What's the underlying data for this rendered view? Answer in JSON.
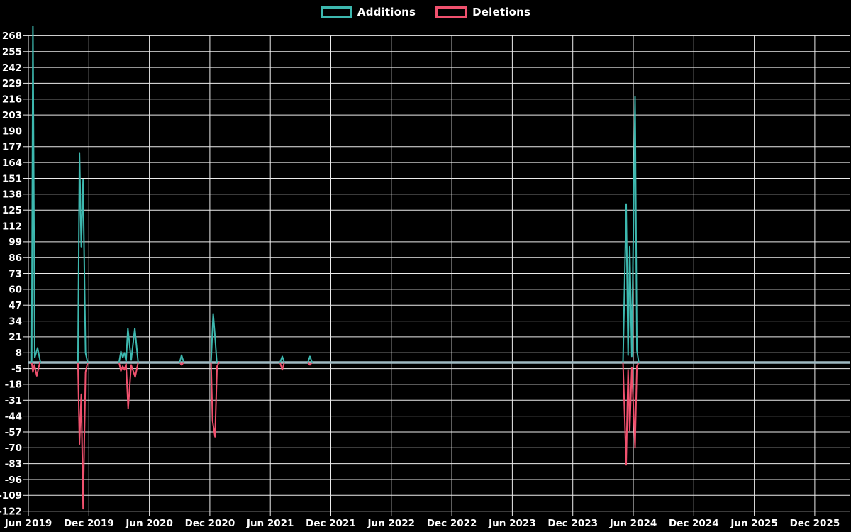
{
  "legend": {
    "additions_label": "Additions",
    "deletions_label": "Deletions"
  },
  "colors": {
    "background": "#000000",
    "grid": "#ffffff",
    "baseline": "#9fbac3",
    "additions": "#3db8af",
    "deletions": "#f0516e",
    "label_text": "#ffffff"
  },
  "chart_data": {
    "type": "line",
    "title": "",
    "xlabel": "",
    "ylabel": "",
    "grid": true,
    "legend_position": "top-center",
    "y_axis": {
      "min": -122,
      "max": 268,
      "step": 13
    },
    "y_tick_labels": [
      268,
      255,
      242,
      229,
      216,
      203,
      190,
      177,
      164,
      151,
      138,
      125,
      112,
      99,
      86,
      73,
      60,
      47,
      34,
      21,
      8,
      -5,
      -18,
      -31,
      -44,
      -57,
      -70,
      -83,
      -96,
      -109,
      -122
    ],
    "x_tick_labels": [
      "Jun 2019",
      "Dec 2019",
      "Jun 2020",
      "Dec 2020",
      "Jun 2021",
      "Dec 2021",
      "Jun 2022",
      "Dec 2022",
      "Jun 2023",
      "Dec 2023",
      "Jun 2024",
      "Dec 2024",
      "Jun 2025",
      "Dec 2025"
    ],
    "x_unit": "half-year ticks; x values are fractional tick indexes (0 = Jun 2019, 1 = Dec 2019, ...)",
    "series": [
      {
        "name": "Additions",
        "color": "#3db8af",
        "points": [
          [
            0,
            0
          ],
          [
            0.055,
            0
          ],
          [
            0.075,
            276
          ],
          [
            0.105,
            4
          ],
          [
            0.152,
            12
          ],
          [
            0.2,
            0
          ],
          [
            0.82,
            0
          ],
          [
            0.845,
            172
          ],
          [
            0.875,
            95
          ],
          [
            0.905,
            150
          ],
          [
            0.945,
            8
          ],
          [
            0.98,
            0
          ],
          [
            1.5,
            0
          ],
          [
            1.53,
            9
          ],
          [
            1.56,
            4
          ],
          [
            1.59,
            8
          ],
          [
            1.615,
            1
          ],
          [
            1.645,
            28
          ],
          [
            1.7,
            2
          ],
          [
            1.76,
            28
          ],
          [
            1.815,
            0
          ],
          [
            2.5,
            0
          ],
          [
            2.532,
            6
          ],
          [
            2.57,
            0
          ],
          [
            3.02,
            0
          ],
          [
            3.055,
            40
          ],
          [
            3.085,
            21
          ],
          [
            3.115,
            0
          ],
          [
            4.16,
            0
          ],
          [
            4.197,
            5
          ],
          [
            4.23,
            0
          ],
          [
            4.62,
            0
          ],
          [
            4.654,
            5
          ],
          [
            4.69,
            0
          ],
          [
            9.83,
            0
          ],
          [
            9.883,
            130
          ],
          [
            9.915,
            6
          ],
          [
            9.941,
            95
          ],
          [
            9.975,
            5
          ],
          [
            10.029,
            218
          ],
          [
            10.06,
            10
          ],
          [
            10.09,
            0
          ],
          [
            13.58,
            0
          ]
        ]
      },
      {
        "name": "Deletions",
        "color": "#f0516e",
        "points": [
          [
            0,
            0
          ],
          [
            0.055,
            0
          ],
          [
            0.075,
            -8
          ],
          [
            0.1,
            -2
          ],
          [
            0.14,
            -11
          ],
          [
            0.19,
            0
          ],
          [
            0.82,
            0
          ],
          [
            0.845,
            -67
          ],
          [
            0.875,
            -26
          ],
          [
            0.905,
            -120
          ],
          [
            0.945,
            -8
          ],
          [
            0.98,
            0
          ],
          [
            1.5,
            0
          ],
          [
            1.53,
            -7
          ],
          [
            1.56,
            -3
          ],
          [
            1.59,
            -6
          ],
          [
            1.615,
            -1
          ],
          [
            1.65,
            -38
          ],
          [
            1.7,
            -2
          ],
          [
            1.765,
            -12
          ],
          [
            1.815,
            0
          ],
          [
            2.5,
            0
          ],
          [
            2.532,
            -2
          ],
          [
            2.57,
            0
          ],
          [
            3.02,
            0
          ],
          [
            3.045,
            -48
          ],
          [
            3.085,
            -61
          ],
          [
            3.12,
            -3
          ],
          [
            3.15,
            0
          ],
          [
            4.16,
            0
          ],
          [
            4.197,
            -6
          ],
          [
            4.23,
            0
          ],
          [
            4.62,
            0
          ],
          [
            4.654,
            -2
          ],
          [
            4.69,
            0
          ],
          [
            9.83,
            0
          ],
          [
            9.883,
            -84
          ],
          [
            9.915,
            -6
          ],
          [
            9.941,
            -56
          ],
          [
            9.975,
            -4
          ],
          [
            10.029,
            -70
          ],
          [
            10.06,
            -3
          ],
          [
            10.09,
            0
          ],
          [
            13.58,
            0
          ]
        ]
      }
    ],
    "baseline": {
      "value": 0,
      "color": "#9fbac3"
    }
  }
}
